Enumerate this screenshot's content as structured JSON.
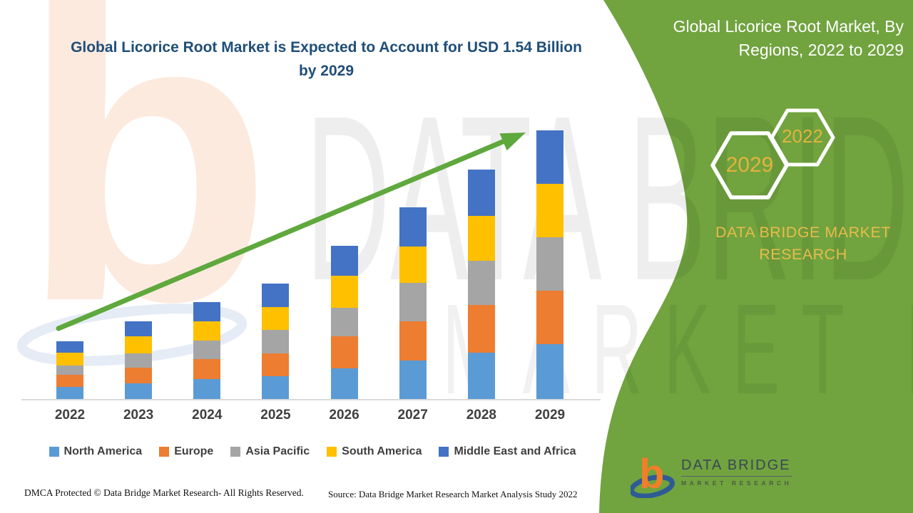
{
  "chart": {
    "title_line1": "Global Licorice Root Market is Expected to Account for USD 1.54 Billion",
    "title_line2": "by 2029"
  },
  "chart_data": {
    "type": "bar",
    "stacked": true,
    "title": "Global Licorice Root Market is Expected to Account for USD 1.54 Billion by 2029",
    "unit": "USD Billion (values estimated from bar heights; 2029 total labeled as 1.54)",
    "categories": [
      "2022",
      "2023",
      "2024",
      "2025",
      "2026",
      "2027",
      "2028",
      "2029"
    ],
    "series": [
      {
        "name": "North America",
        "color": "#5B9BD5",
        "values": [
          0.069,
          0.09,
          0.114,
          0.131,
          0.176,
          0.221,
          0.266,
          0.315
        ]
      },
      {
        "name": "Europe",
        "color": "#ED7D31",
        "values": [
          0.069,
          0.09,
          0.114,
          0.131,
          0.184,
          0.225,
          0.274,
          0.306
        ]
      },
      {
        "name": "Asia Pacific",
        "color": "#A5A5A5",
        "values": [
          0.053,
          0.082,
          0.106,
          0.135,
          0.163,
          0.221,
          0.253,
          0.306
        ]
      },
      {
        "name": "South America",
        "color": "#FFC000",
        "values": [
          0.074,
          0.098,
          0.11,
          0.131,
          0.184,
          0.208,
          0.257,
          0.306
        ]
      },
      {
        "name": "Middle East and Africa",
        "color": "#4472C4",
        "values": [
          0.065,
          0.086,
          0.11,
          0.135,
          0.172,
          0.225,
          0.266,
          0.306
        ]
      }
    ],
    "totals_estimated": [
      0.33,
      0.45,
      0.55,
      0.66,
      0.88,
      1.1,
      1.32,
      1.54
    ],
    "ylim": [
      0,
      1.6
    ],
    "grid": false,
    "y_axis_visible": false,
    "legend_position": "bottom",
    "annotations": [
      "green upward trend arrow from 2022 bar to 2029 bar",
      "2029 total = USD 1.54 Billion"
    ]
  },
  "side_panel": {
    "title_line1": "Global Licorice Root Market, By",
    "title_line2": "Regions, 2022 to 2029",
    "hex_large_year": "2029",
    "hex_small_year": "2022",
    "brand_text": "DATA BRIDGE MARKET RESEARCH"
  },
  "logo": {
    "name_line": "DATA BRIDGE",
    "sub_line": "MARKET RESEARCH"
  },
  "footer": {
    "left": "DMCA Protected © Data Bridge Market Research- All Rights Reserved.",
    "source": "Source: Data Bridge Market Research Market Analysis Study 2022"
  },
  "watermarks": {
    "row1": "DATA BRIDGE",
    "row2": "MARKET RESEARCH",
    "logo_letter": "b"
  },
  "colors": {
    "title_blue": "#1F4E79",
    "panel_green": "#71A33F",
    "arrow_green": "#5FA83D",
    "gold_text": "#E2B33C",
    "legend_text": "#404040",
    "axis_line": "#D9D9D9"
  }
}
